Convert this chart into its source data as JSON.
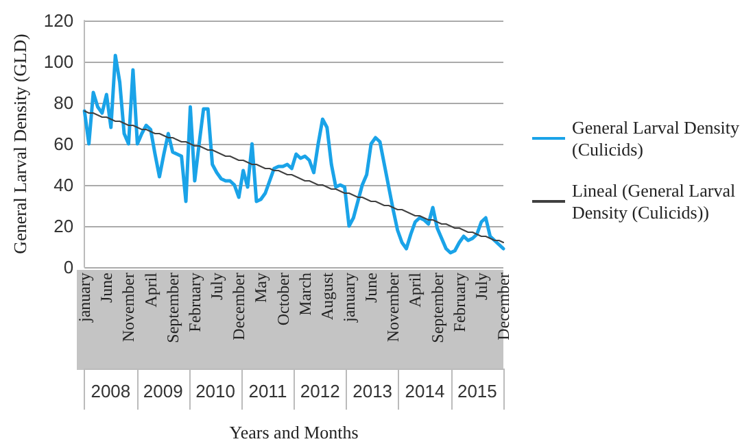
{
  "chart_data": {
    "type": "line",
    "xlabel": "Years and Months",
    "ylabel": "General Larval Density (GLD)",
    "categories": [
      "january",
      null,
      null,
      null,
      null,
      "June",
      null,
      null,
      null,
      null,
      "November",
      null,
      null,
      null,
      null,
      "April",
      null,
      null,
      null,
      null,
      "September",
      null,
      null,
      null,
      null,
      "February",
      null,
      null,
      null,
      null,
      "July",
      null,
      null,
      null,
      null,
      "December",
      null,
      null,
      null,
      null,
      "May",
      null,
      null,
      null,
      null,
      "October",
      null,
      null,
      null,
      null,
      "March",
      null,
      null,
      null,
      null,
      "August",
      null,
      null,
      null,
      null,
      "january",
      null,
      null,
      null,
      null,
      "June",
      null,
      null,
      null,
      null,
      "November",
      null,
      null,
      null,
      null,
      "April",
      null,
      null,
      null,
      null,
      "September",
      null,
      null,
      null,
      null,
      "February",
      null,
      null,
      null,
      null,
      "July",
      null,
      null,
      null,
      null,
      "December"
    ],
    "series": [
      {
        "name": "General Larval Density (Culicids)",
        "color": "#1aa3e8",
        "values": [
          76,
          60,
          85,
          78,
          75,
          84,
          68,
          103,
          90,
          65,
          60,
          96,
          60,
          65,
          69,
          67,
          55,
          44,
          55,
          65,
          56,
          55,
          54,
          32,
          78,
          42,
          60,
          77,
          77,
          50,
          46,
          43,
          42,
          42,
          40,
          34,
          47,
          39,
          60,
          32,
          33,
          36,
          42,
          48,
          49,
          49,
          50,
          48,
          55,
          53,
          54,
          52,
          46,
          60,
          72,
          68,
          50,
          39,
          40,
          39,
          20,
          24,
          32,
          40,
          45,
          60,
          63,
          61,
          50,
          39,
          28,
          18,
          12,
          9,
          16,
          22,
          24,
          23,
          21,
          29,
          19,
          14,
          9,
          7,
          8,
          12,
          15,
          13,
          14,
          16,
          22,
          24,
          15,
          13,
          11,
          9
        ]
      },
      {
        "name": "Lineal (General Larval Density (Culicids))",
        "color": "#404040",
        "values": [
          76,
          75,
          75,
          74,
          73,
          73,
          72,
          71,
          71,
          70,
          69,
          69,
          68,
          67,
          67,
          66,
          65,
          65,
          64,
          63,
          63,
          62,
          61,
          61,
          60,
          59,
          59,
          58,
          57,
          57,
          56,
          55,
          54,
          54,
          53,
          52,
          52,
          51,
          50,
          50,
          49,
          48,
          48,
          47,
          47,
          46,
          45,
          45,
          44,
          43,
          42,
          42,
          41,
          40,
          40,
          39,
          38,
          38,
          37,
          36,
          36,
          35,
          34,
          34,
          33,
          32,
          32,
          31,
          30,
          30,
          29,
          28,
          28,
          27,
          26,
          25,
          25,
          24,
          23,
          23,
          22,
          21,
          21,
          20,
          19,
          19,
          18,
          17,
          17,
          16,
          15,
          15,
          14,
          13,
          13,
          12
        ]
      }
    ],
    "annotations": [
      "2008",
      "2009",
      "2010",
      "2011",
      "2012",
      "2013",
      "2014",
      "2015"
    ],
    "ylim": [
      0,
      120
    ],
    "yticks": [
      0,
      20,
      40,
      60,
      80,
      100,
      120
    ],
    "grid": "y",
    "legend": "right",
    "marker": "none",
    "line_style": "solid"
  }
}
